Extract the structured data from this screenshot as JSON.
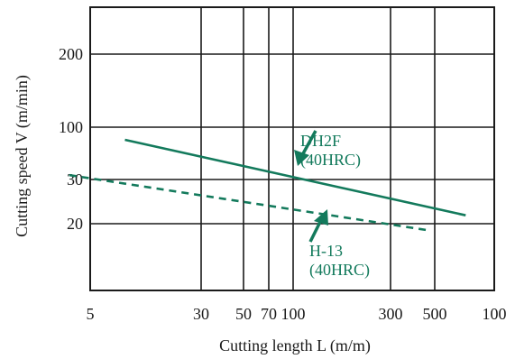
{
  "chart_data": {
    "type": "line",
    "xlabel": "Cutting length L (m/m)",
    "ylabel": "Cutting speed V (m/min)",
    "x_scale": "log",
    "y_scale": "custom",
    "x_ticks": [
      {
        "label": "5"
      },
      {
        "label": "30"
      },
      {
        "label": "50"
      },
      {
        "label": "70"
      },
      {
        "label": "100"
      },
      {
        "label": "300"
      },
      {
        "label": "500"
      },
      {
        "label": "100"
      }
    ],
    "y_ticks": [
      {
        "label": "20"
      },
      {
        "label": "30"
      },
      {
        "label": "100"
      },
      {
        "label": "200"
      }
    ],
    "series": [
      {
        "name": "DH2F (40HRC)",
        "style": "solid",
        "color": "#137a5c",
        "x": [
          15,
          700
        ],
        "y": [
          81,
          23
        ]
      },
      {
        "name": "H-13 (40HRC)",
        "style": "dashed",
        "color": "#137a5c",
        "x": [
          8,
          450
        ],
        "y": [
          45,
          18
        ]
      }
    ],
    "annotations": [
      {
        "line1": "DH2F",
        "line2": "(40HRC)"
      },
      {
        "line1": "H-13",
        "line2": "(40HRC)"
      }
    ],
    "grid": true,
    "legend": "none (inline annotations with arrows)"
  }
}
